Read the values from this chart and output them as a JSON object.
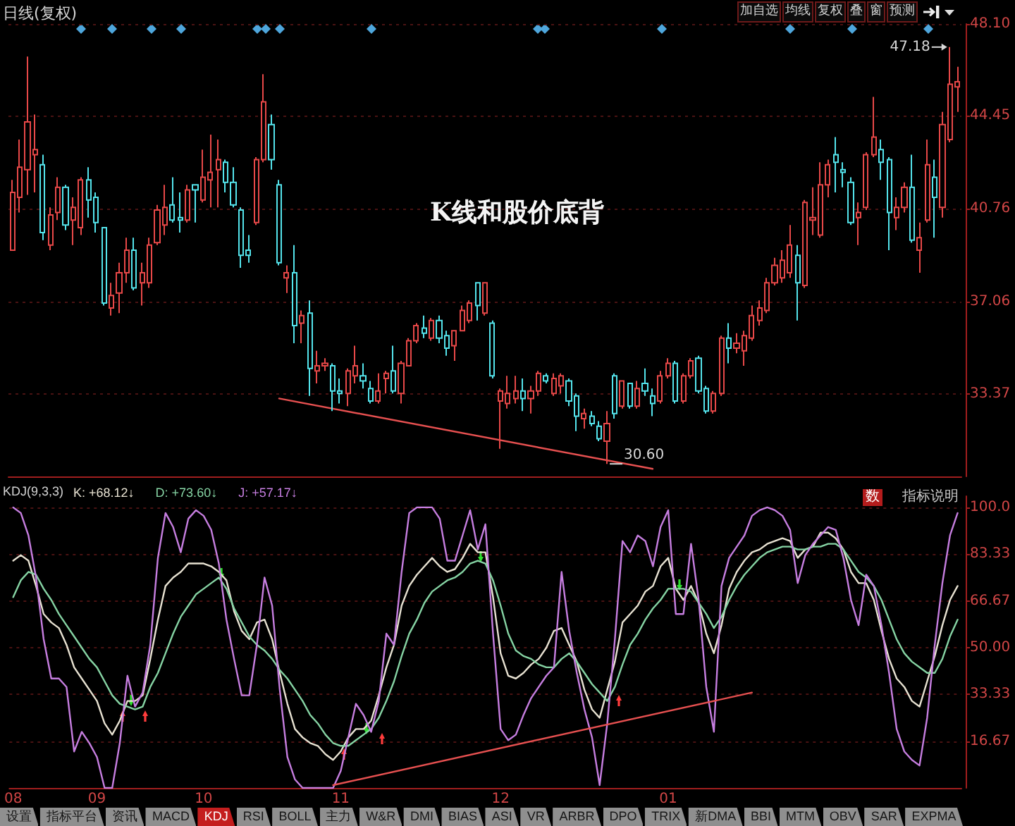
{
  "chart_data": [
    {
      "type": "candlestick",
      "title": "日线(复权)",
      "categories": [
        "08",
        null,
        null,
        null,
        null,
        null,
        null,
        null,
        null,
        null,
        null,
        "09",
        null,
        null,
        null,
        null,
        null,
        null,
        null,
        null,
        null,
        null,
        null,
        null,
        null,
        "10",
        null,
        null,
        null,
        null,
        null,
        null,
        null,
        null,
        null,
        null,
        null,
        null,
        null,
        null,
        null,
        null,
        null,
        "11",
        null,
        null,
        null,
        null,
        null,
        null,
        null,
        null,
        null,
        null,
        null,
        null,
        null,
        null,
        null,
        null,
        null,
        null,
        null,
        null,
        "12",
        null,
        null,
        null,
        null,
        null,
        null,
        null,
        null,
        null,
        null,
        null,
        null,
        null,
        null,
        null,
        null,
        null,
        null,
        null,
        null,
        null,
        "01",
        null,
        null,
        null,
        null,
        null,
        null,
        null,
        null,
        null,
        null,
        null,
        null,
        null,
        null,
        null,
        null,
        null,
        null,
        null,
        null,
        null,
        null,
        null,
        null,
        null,
        null,
        null,
        null,
        null,
        null,
        null,
        null,
        null,
        null,
        null,
        null,
        null,
        null
      ],
      "ohlc": [
        [
          39.1,
          41.9,
          39.1,
          41.4
        ],
        [
          41.2,
          43.5,
          40.6,
          42.4
        ],
        [
          42.3,
          46.8,
          41.3,
          44.2
        ],
        [
          42.9,
          44.5,
          41.4,
          43.1
        ],
        [
          42.5,
          42.9,
          39.5,
          39.8
        ],
        [
          39.3,
          40.8,
          39.1,
          40.5
        ],
        [
          40.6,
          42.0,
          40.3,
          41.6
        ],
        [
          41.6,
          41.7,
          39.9,
          40.1
        ],
        [
          40.3,
          41.2,
          39.3,
          40.8
        ],
        [
          40.0,
          42.0,
          39.7,
          41.9
        ],
        [
          41.9,
          42.4,
          40.4,
          41.1
        ],
        [
          41.2,
          41.4,
          39.8,
          40.2
        ],
        [
          40.0,
          40.0,
          36.9,
          37.0
        ],
        [
          36.8,
          37.8,
          36.5,
          37.3
        ],
        [
          37.4,
          38.6,
          36.6,
          38.2
        ],
        [
          38.2,
          39.6,
          37.8,
          39.1
        ],
        [
          39.1,
          39.6,
          37.5,
          37.6
        ],
        [
          37.8,
          38.6,
          36.9,
          38.2
        ],
        [
          37.8,
          39.6,
          37.6,
          39.3
        ],
        [
          39.4,
          40.9,
          39.3,
          40.7
        ],
        [
          40.1,
          41.7,
          39.7,
          40.8
        ],
        [
          40.9,
          42.0,
          40.2,
          40.3
        ],
        [
          40.4,
          41.4,
          39.8,
          40.3
        ],
        [
          40.3,
          41.7,
          40.2,
          41.5
        ],
        [
          41.7,
          41.7,
          40.2,
          41.5
        ],
        [
          41.1,
          43.1,
          41.0,
          42.0
        ],
        [
          41.9,
          43.7,
          40.8,
          42.2
        ],
        [
          42.3,
          43.5,
          40.8,
          42.7
        ],
        [
          42.6,
          42.7,
          41.4,
          41.8
        ],
        [
          41.8,
          42.4,
          40.8,
          40.9
        ],
        [
          40.7,
          40.8,
          38.4,
          38.9
        ],
        [
          39.1,
          39.7,
          38.6,
          38.9
        ],
        [
          40.2,
          42.8,
          40.1,
          42.7
        ],
        [
          42.7,
          46.1,
          42.6,
          45.0
        ],
        [
          44.1,
          44.5,
          42.3,
          42.7
        ],
        [
          41.7,
          41.9,
          38.5,
          38.6
        ],
        [
          38.0,
          38.5,
          37.4,
          38.2
        ],
        [
          38.2,
          39.3,
          35.4,
          36.1
        ],
        [
          36.2,
          36.7,
          35.4,
          36.5
        ],
        [
          36.6,
          37.1,
          33.3,
          34.4
        ],
        [
          34.3,
          35.1,
          33.8,
          34.5
        ],
        [
          34.5,
          34.8,
          34.3,
          34.6
        ],
        [
          34.5,
          34.6,
          32.7,
          33.5
        ],
        [
          33.5,
          34.0,
          33.0,
          33.4
        ],
        [
          33.4,
          34.4,
          32.9,
          34.3
        ],
        [
          34.1,
          35.3,
          33.8,
          34.5
        ],
        [
          34.1,
          34.6,
          33.6,
          33.9
        ],
        [
          33.6,
          33.9,
          33.0,
          33.1
        ],
        [
          33.1,
          34.2,
          33.0,
          33.5
        ],
        [
          34.0,
          34.3,
          33.4,
          34.2
        ],
        [
          34.3,
          35.3,
          33.4,
          33.5
        ],
        [
          33.4,
          34.7,
          33.0,
          34.6
        ],
        [
          34.5,
          35.6,
          34.5,
          35.5
        ],
        [
          35.5,
          36.2,
          35.4,
          36.1
        ],
        [
          36.0,
          36.5,
          35.6,
          35.8
        ],
        [
          35.6,
          36.4,
          35.5,
          36.3
        ],
        [
          36.3,
          36.5,
          35.4,
          35.6
        ],
        [
          35.7,
          35.9,
          34.9,
          35.2
        ],
        [
          35.3,
          35.9,
          34.7,
          35.9
        ],
        [
          35.9,
          36.9,
          35.9,
          36.7
        ],
        [
          36.3,
          37.1,
          36.2,
          37.0
        ],
        [
          37.8,
          37.8,
          36.3,
          36.9
        ],
        [
          36.6,
          37.8,
          36.5,
          37.8
        ],
        [
          36.2,
          36.3,
          34.0,
          34.1
        ],
        [
          33.1,
          33.6,
          31.2,
          33.5
        ],
        [
          33.0,
          34.1,
          32.8,
          33.4
        ],
        [
          33.2,
          34.1,
          33.0,
          33.5
        ],
        [
          33.5,
          34.0,
          32.7,
          33.2
        ],
        [
          33.2,
          33.7,
          32.6,
          33.5
        ],
        [
          33.5,
          34.3,
          33.3,
          34.2
        ],
        [
          34.1,
          34.2,
          33.8,
          33.9
        ],
        [
          33.4,
          34.2,
          33.3,
          34.0
        ],
        [
          33.7,
          34.2,
          33.4,
          34.1
        ],
        [
          33.9,
          34.0,
          32.9,
          33.1
        ],
        [
          33.3,
          33.4,
          31.9,
          32.5
        ],
        [
          32.4,
          32.8,
          32.0,
          32.6
        ],
        [
          32.5,
          32.7,
          32.1,
          32.2
        ],
        [
          32.1,
          32.3,
          31.5,
          31.6
        ],
        [
          31.5,
          32.7,
          30.6,
          32.2
        ],
        [
          34.1,
          34.2,
          32.4,
          32.6
        ],
        [
          32.9,
          33.9,
          32.8,
          33.9
        ],
        [
          33.8,
          33.8,
          32.8,
          32.9
        ],
        [
          32.9,
          33.9,
          32.8,
          33.6
        ],
        [
          33.8,
          34.4,
          33.3,
          33.5
        ],
        [
          33.3,
          33.6,
          32.5,
          33.0
        ],
        [
          33.1,
          34.3,
          33.0,
          34.1
        ],
        [
          34.1,
          34.8,
          34.0,
          34.6
        ],
        [
          34.6,
          34.7,
          33.0,
          33.1
        ],
        [
          33.1,
          34.2,
          33.0,
          34.1
        ],
        [
          34.1,
          34.8,
          34.0,
          34.7
        ],
        [
          34.8,
          34.9,
          33.4,
          33.5
        ],
        [
          33.6,
          33.7,
          32.6,
          32.7
        ],
        [
          32.7,
          33.5,
          32.6,
          33.4
        ],
        [
          33.4,
          35.7,
          33.3,
          35.6
        ],
        [
          35.6,
          36.2,
          34.6,
          35.2
        ],
        [
          35.2,
          35.8,
          35.0,
          35.4
        ],
        [
          35.1,
          35.9,
          34.5,
          35.7
        ],
        [
          35.6,
          36.9,
          35.5,
          36.5
        ],
        [
          36.3,
          37.1,
          36.1,
          36.8
        ],
        [
          36.7,
          38.0,
          36.6,
          37.8
        ],
        [
          37.8,
          38.8,
          37.7,
          38.5
        ],
        [
          38.0,
          39.1,
          37.8,
          38.7
        ],
        [
          38.2,
          40.1,
          38.0,
          39.3
        ],
        [
          38.9,
          39.3,
          36.3,
          37.8
        ],
        [
          37.7,
          41.1,
          37.6,
          41.0
        ],
        [
          40.3,
          41.6,
          39.7,
          40.4
        ],
        [
          39.7,
          42.6,
          39.6,
          41.7
        ],
        [
          41.7,
          42.7,
          41.2,
          42.5
        ],
        [
          42.9,
          43.6,
          41.4,
          42.6
        ],
        [
          42.3,
          42.6,
          41.6,
          42.2
        ],
        [
          41.8,
          42.0,
          40.1,
          40.2
        ],
        [
          40.4,
          41.0,
          39.3,
          40.6
        ],
        [
          40.8,
          43.0,
          40.7,
          42.9
        ],
        [
          42.9,
          45.2,
          42.8,
          43.6
        ],
        [
          43.1,
          43.5,
          41.9,
          42.6
        ],
        [
          42.7,
          42.8,
          39.1,
          40.6
        ],
        [
          40.4,
          41.2,
          39.9,
          40.8
        ],
        [
          40.8,
          41.8,
          40.6,
          41.6
        ],
        [
          41.6,
          42.9,
          39.4,
          39.5
        ],
        [
          39.1,
          40.2,
          38.2,
          39.6
        ],
        [
          40.3,
          43.5,
          40.2,
          42.5
        ],
        [
          42.0,
          42.7,
          39.6,
          41.2
        ],
        [
          40.8,
          44.6,
          40.4,
          44.1
        ],
        [
          43.5,
          47.18,
          43.4,
          45.7
        ],
        [
          45.6,
          46.4,
          44.6,
          45.8
        ]
      ],
      "colors": [
        "#e84848",
        "#e84848",
        "#e84848",
        "#e84848",
        "#54e4ec",
        "#e84848",
        "#e84848",
        "#54e4ec",
        "#e84848",
        "#e84848",
        "#54e4ec",
        "#54e4ec",
        "#54e4ec",
        "#e84848",
        "#e84848",
        "#e84848",
        "#54e4ec",
        "#e84848",
        "#e84848",
        "#e84848",
        "#e84848",
        "#54e4ec",
        "#54e4ec",
        "#e84848",
        "#54e4ec",
        "#e84848",
        "#e84848",
        "#e84848",
        "#54e4ec",
        "#54e4ec",
        "#54e4ec",
        "#54e4ec",
        "#e84848",
        "#e84848",
        "#54e4ec",
        "#54e4ec",
        "#e84848",
        "#54e4ec",
        "#e84848",
        "#54e4ec",
        "#e84848",
        "#e84848",
        "#54e4ec",
        "#54e4ec",
        "#e84848",
        "#e84848",
        "#54e4ec",
        "#54e4ec",
        "#e84848",
        "#e84848",
        "#54e4ec",
        "#e84848",
        "#e84848",
        "#e84848",
        "#54e4ec",
        "#e84848",
        "#54e4ec",
        "#54e4ec",
        "#e84848",
        "#e84848",
        "#e84848",
        "#54e4ec",
        "#e84848",
        "#54e4ec",
        "#e84848",
        "#e84848",
        "#e84848",
        "#54e4ec",
        "#e84848",
        "#e84848",
        "#54e4ec",
        "#e84848",
        "#e84848",
        "#54e4ec",
        "#54e4ec",
        "#e84848",
        "#54e4ec",
        "#54e4ec",
        "#e84848",
        "#54e4ec",
        "#e84848",
        "#54e4ec",
        "#e84848",
        "#54e4ec",
        "#54e4ec",
        "#e84848",
        "#e84848",
        "#54e4ec",
        "#e84848",
        "#e84848",
        "#54e4ec",
        "#54e4ec",
        "#e84848",
        "#e84848",
        "#54e4ec",
        "#e84848",
        "#e84848",
        "#e84848",
        "#e84848",
        "#e84848",
        "#e84848",
        "#e84848",
        "#e84848",
        "#54e4ec",
        "#e84848",
        "#e84848",
        "#e84848",
        "#e84848",
        "#54e4ec",
        "#54e4ec",
        "#54e4ec",
        "#e84848",
        "#e84848",
        "#e84848",
        "#54e4ec",
        "#54e4ec",
        "#e84848",
        "#e84848",
        "#54e4ec",
        "#e84848",
        "#e84848",
        "#54e4ec",
        "#e84848",
        "#e84848",
        "#e84848"
      ],
      "series": [
        {
          "type": "line",
          "color": "#e65050",
          "values": [
            null,
            null,
            null,
            null,
            null,
            null,
            null,
            null,
            null,
            null,
            null,
            null,
            null,
            null,
            null,
            null,
            null,
            null,
            null,
            null,
            null,
            null,
            null,
            null,
            null,
            null,
            null,
            null,
            null,
            null,
            null,
            null,
            null,
            null,
            null,
            33.2,
            null,
            null,
            null,
            null,
            null,
            null,
            null,
            null,
            null,
            null,
            null,
            null,
            null,
            null,
            null,
            null,
            null,
            null,
            null,
            null,
            null,
            null,
            null,
            null,
            null,
            null,
            null,
            null,
            null,
            null,
            null,
            null,
            null,
            null,
            null,
            null,
            null,
            null,
            null,
            null,
            null,
            null,
            null,
            null,
            null,
            null,
            null,
            null,
            30.4,
            null,
            null,
            null,
            null,
            null,
            null,
            null,
            null,
            null,
            null,
            null,
            null,
            null,
            null,
            null,
            null,
            null,
            null,
            null,
            null,
            null,
            null,
            null,
            null,
            null,
            null,
            null,
            null,
            null,
            null,
            null,
            null,
            null,
            null,
            null,
            null,
            null,
            null,
            null,
            null
          ]
        }
      ],
      "ylim": [
        30.1,
        48.1
      ],
      "yticks": [
        {
          "value": 48.1,
          "label": "48.10"
        },
        44.45,
        40.76,
        37.06,
        33.37
      ],
      "grid": "y",
      "tick_labels": "y",
      "annotations": [
        "K线和股价底背",
        "47.18",
        "30.60"
      ]
    },
    {
      "type": "other",
      "annotations": [
        "加自选",
        "均线",
        "复权",
        "叠",
        "窗",
        "预测"
      ]
    },
    {
      "type": "line",
      "title": "KDJ(9,3,3)",
      "categories": [
        "08",
        null,
        null,
        null,
        null,
        null,
        null,
        null,
        null,
        null,
        null,
        "09",
        null,
        null,
        null,
        null,
        null,
        null,
        null,
        null,
        null,
        null,
        null,
        null,
        null,
        "10",
        null,
        null,
        null,
        null,
        null,
        null,
        null,
        null,
        null,
        null,
        null,
        null,
        null,
        null,
        null,
        null,
        null,
        "11",
        null,
        null,
        null,
        null,
        null,
        null,
        null,
        null,
        null,
        null,
        null,
        null,
        null,
        null,
        null,
        null,
        null,
        null,
        null,
        null,
        "12",
        null,
        null,
        null,
        null,
        null,
        null,
        null,
        null,
        null,
        null,
        null,
        null,
        null,
        null,
        null,
        null,
        null,
        null,
        null,
        null,
        null,
        "01",
        null,
        null,
        null,
        null,
        null,
        null,
        null,
        null,
        null,
        null,
        null,
        null,
        null,
        null,
        null,
        null,
        null,
        null,
        null,
        null,
        null,
        null,
        null,
        null,
        null,
        null,
        null,
        null,
        null,
        null,
        null,
        null,
        null,
        null,
        null,
        null,
        null,
        null
      ],
      "series": [
        {
          "name": "K: +68.12↓",
          "color": "#e8e2d2",
          "values": [
            81,
            83,
            81,
            72,
            62,
            59,
            57,
            51,
            43,
            39,
            35,
            31,
            23,
            19,
            24,
            31,
            31,
            33,
            46,
            60,
            72,
            75,
            77,
            80,
            80,
            80,
            79,
            77,
            74,
            63,
            56,
            53,
            59,
            60,
            53,
            41,
            30,
            21,
            18,
            16,
            15,
            12,
            10,
            13,
            18,
            21,
            21,
            24,
            33,
            43,
            51,
            65,
            72,
            76,
            79,
            82,
            79,
            77,
            78,
            82,
            87,
            84,
            84,
            68,
            48,
            40,
            39,
            41,
            44,
            46,
            50,
            56,
            57,
            51,
            45,
            35,
            28,
            25,
            35,
            45,
            59,
            62,
            65,
            70,
            72,
            79,
            82,
            71,
            67,
            72,
            66,
            55,
            48,
            58,
            71,
            77,
            81,
            84,
            85,
            87,
            88,
            89,
            88,
            82,
            85,
            86,
            91,
            91,
            89,
            85,
            77,
            73,
            73,
            67,
            56,
            46,
            39,
            36,
            31,
            29,
            38,
            47,
            58,
            67,
            72
          ]
        },
        {
          "name": "D: +73.60↓",
          "color": "#86d4a4",
          "values": [
            68,
            74,
            77,
            76,
            71,
            67,
            62,
            58,
            54,
            50,
            46,
            43,
            38,
            33,
            30,
            29,
            28,
            29,
            36,
            41,
            48,
            55,
            61,
            65,
            69,
            71,
            73,
            75,
            71,
            64,
            59,
            54,
            51,
            49,
            46,
            42,
            39,
            35,
            31,
            26,
            23,
            19,
            16,
            15,
            15,
            17,
            19,
            21,
            25,
            31,
            38,
            47,
            55,
            60,
            66,
            70,
            72,
            74,
            75,
            77,
            80,
            81,
            80,
            74,
            65,
            55,
            49,
            47,
            46,
            44,
            43,
            43,
            46,
            48,
            45,
            41,
            37,
            34,
            31,
            36,
            44,
            51,
            55,
            60,
            64,
            67,
            71,
            71,
            71,
            70,
            66,
            62,
            57,
            61,
            67,
            72,
            76,
            79,
            82,
            84,
            85,
            86,
            86,
            85,
            85,
            86,
            86,
            87,
            87,
            85,
            81,
            77,
            75,
            72,
            67,
            60,
            53,
            48,
            45,
            43,
            41,
            41,
            46,
            54,
            60
          ]
        },
        {
          "name": "J: +57.17↓",
          "color": "#c67ee0",
          "values": [
            100,
            98,
            90,
            75,
            53,
            39,
            39,
            36,
            13,
            20,
            16,
            11,
            0,
            0,
            16,
            40,
            29,
            34,
            51,
            82,
            98,
            93,
            84,
            96,
            99,
            97,
            92,
            80,
            60,
            46,
            33,
            33,
            51,
            75,
            65,
            35,
            11,
            3,
            0,
            0,
            0,
            0,
            0,
            6,
            18,
            30,
            26,
            20,
            31,
            55,
            51,
            77,
            98,
            100,
            100,
            100,
            96,
            81,
            81,
            90,
            99,
            85,
            94,
            55,
            21,
            17,
            19,
            26,
            32,
            36,
            40,
            43,
            77,
            56,
            41,
            28,
            18,
            1,
            23,
            53,
            88,
            84,
            90,
            88,
            79,
            93,
            99,
            62,
            62,
            87,
            67,
            36,
            20,
            72,
            82,
            86,
            90,
            97,
            99,
            100,
            99,
            97,
            92,
            73,
            83,
            87,
            90,
            93,
            92,
            82,
            67,
            58,
            76,
            72,
            58,
            41,
            21,
            13,
            10,
            8,
            25,
            51,
            73,
            90,
            98
          ]
        },
        {
          "color": "#e65050",
          "values": [
            null,
            null,
            null,
            null,
            null,
            null,
            null,
            null,
            null,
            null,
            null,
            null,
            null,
            null,
            null,
            null,
            null,
            null,
            null,
            null,
            null,
            null,
            null,
            null,
            null,
            null,
            null,
            null,
            null,
            null,
            null,
            null,
            null,
            null,
            null,
            null,
            null,
            null,
            null,
            null,
            null,
            null,
            1,
            null,
            null,
            null,
            null,
            null,
            null,
            null,
            null,
            null,
            null,
            null,
            null,
            null,
            null,
            null,
            null,
            null,
            null,
            null,
            null,
            null,
            null,
            null,
            null,
            null,
            null,
            null,
            null,
            null,
            null,
            null,
            null,
            null,
            null,
            null,
            null,
            null,
            null,
            null,
            null,
            null,
            null,
            null,
            null,
            null,
            null,
            null,
            null,
            null,
            null,
            null,
            null,
            null,
            null,
            34,
            null,
            null,
            null,
            null,
            null,
            null,
            null,
            null,
            null,
            null,
            null,
            null,
            null,
            null,
            null,
            null,
            null,
            null,
            null,
            null,
            null,
            null,
            null,
            null,
            null,
            null,
            null
          ]
        }
      ],
      "ylim": [
        0,
        104
      ],
      "yticks": [
        {
          "value": 100,
          "label": "100.0"
        },
        83.33,
        66.67,
        {
          "value": 50,
          "label": "50.00"
        },
        33.33,
        16.67
      ],
      "grid": "y",
      "legend": "top left"
    },
    {
      "type": "other",
      "annotations": [
        "数",
        "指标说明"
      ]
    },
    {
      "type": "other",
      "annotations": [
        "设置",
        "指标平台",
        "资讯",
        "MACD",
        "KDJ",
        "RSI",
        "BOLL",
        "主力",
        "W&R",
        "DMI",
        "BIAS",
        "ASI",
        "VR",
        "ARBR",
        "DPO",
        "TRIX",
        "新DMA",
        "BBI",
        "MTM",
        "OBV",
        "SAR",
        "EXPMA"
      ]
    }
  ]
}
